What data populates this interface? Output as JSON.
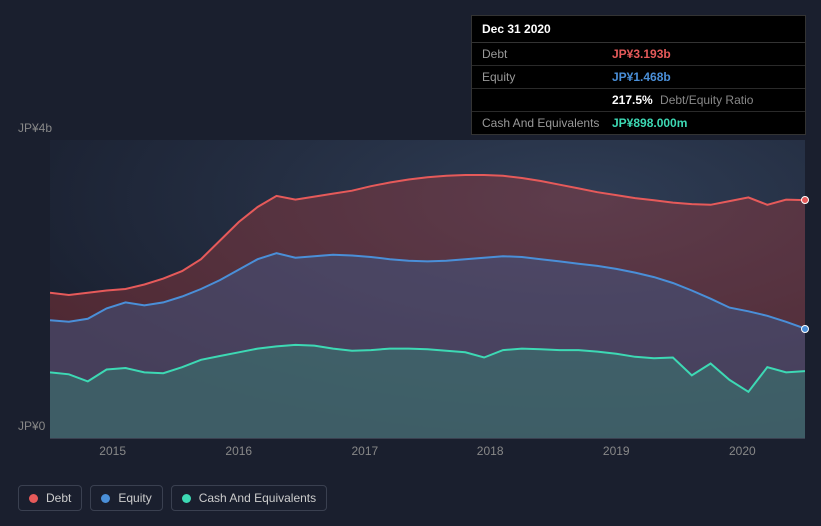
{
  "tooltip": {
    "date": "Dec 31 2020",
    "rows": [
      {
        "label": "Debt",
        "value": "JP¥3.193b",
        "color": "#e65a5a"
      },
      {
        "label": "Equity",
        "value": "JP¥1.468b",
        "color": "#4a8fd8"
      },
      {
        "label": "",
        "value": "217.5%",
        "extra": "Debt/Equity Ratio",
        "color": "#ffffff",
        "is_ratio": true
      },
      {
        "label": "Cash And Equivalents",
        "value": "JP¥898.000m",
        "color": "#3dd9b4"
      }
    ]
  },
  "chart": {
    "type": "area",
    "background_color": "#1a1f2e",
    "plot_background": "radial-gradient(ellipse at 70% 30%, #2a3548 0%, #1a2030 70%)",
    "grid_color": "#3a4050",
    "font_color": "#888",
    "y_axis": {
      "ticks": [
        {
          "label": "JP¥4b",
          "value": 4000
        },
        {
          "label": "JP¥0",
          "value": 0
        }
      ],
      "min": 0,
      "max": 4000
    },
    "x_axis": {
      "ticks": [
        "2015",
        "2016",
        "2017",
        "2018",
        "2019",
        "2020"
      ],
      "tick_positions": [
        0.083,
        0.25,
        0.417,
        0.583,
        0.75,
        0.917
      ]
    },
    "series": [
      {
        "name": "Debt",
        "color": "#e65a5a",
        "fill": "rgba(180,60,60,0.35)",
        "line_width": 2,
        "y": [
          1950,
          1920,
          1950,
          1980,
          2000,
          2060,
          2140,
          2240,
          2400,
          2650,
          2900,
          3100,
          3250,
          3200,
          3240,
          3280,
          3320,
          3380,
          3430,
          3470,
          3500,
          3520,
          3530,
          3530,
          3520,
          3490,
          3450,
          3400,
          3350,
          3300,
          3260,
          3220,
          3190,
          3160,
          3140,
          3130,
          3180,
          3230,
          3130,
          3200,
          3193
        ]
      },
      {
        "name": "Equity",
        "color": "#4a8fd8",
        "fill": "rgba(60,90,140,0.45)",
        "line_width": 2,
        "y": [
          1580,
          1560,
          1600,
          1740,
          1820,
          1780,
          1820,
          1900,
          2000,
          2120,
          2260,
          2400,
          2480,
          2420,
          2440,
          2460,
          2450,
          2430,
          2400,
          2380,
          2370,
          2380,
          2400,
          2420,
          2440,
          2430,
          2400,
          2370,
          2340,
          2310,
          2270,
          2220,
          2160,
          2080,
          1980,
          1870,
          1750,
          1700,
          1640,
          1560,
          1468
        ]
      },
      {
        "name": "Cash And Equivalents",
        "color": "#3dd9b4",
        "fill": "rgba(50,140,120,0.4)",
        "line_width": 2,
        "y": [
          880,
          855,
          760,
          920,
          940,
          880,
          870,
          950,
          1050,
          1100,
          1150,
          1200,
          1230,
          1250,
          1240,
          1200,
          1170,
          1180,
          1200,
          1200,
          1190,
          1170,
          1150,
          1080,
          1180,
          1200,
          1190,
          1180,
          1180,
          1160,
          1130,
          1090,
          1070,
          1080,
          840,
          1000,
          780,
          620,
          950,
          880,
          898
        ]
      }
    ],
    "end_markers": [
      {
        "color": "#e65a5a",
        "y": 3193
      },
      {
        "color": "#4a8fd8",
        "y": 1468
      }
    ]
  },
  "legend": [
    {
      "label": "Debt",
      "color": "#e65a5a"
    },
    {
      "label": "Equity",
      "color": "#4a8fd8"
    },
    {
      "label": "Cash And Equivalents",
      "color": "#3dd9b4"
    }
  ]
}
